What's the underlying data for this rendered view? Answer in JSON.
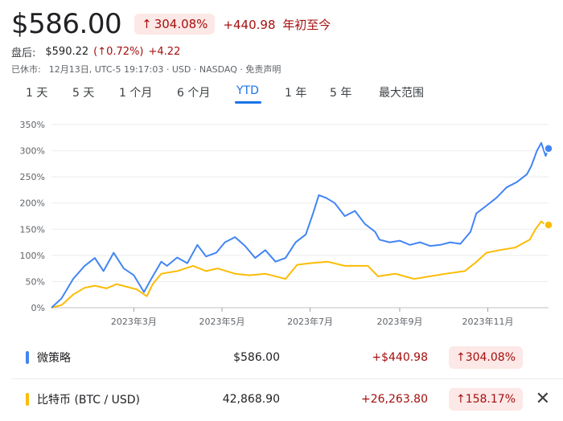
{
  "header": {
    "price": "$586.00",
    "pct_arrow": "↑",
    "pct_change": "304.08%",
    "abs_change": "+440.98",
    "period_label": "年初至今"
  },
  "after_hours": {
    "label": "盘后:",
    "price": "$590.22",
    "pct": "(↑0.72%)",
    "abs": "+4.22"
  },
  "market_status": {
    "label": "已休市:",
    "detail": "12月13日, UTC-5 19:17:03 · USD · NASDAQ · 免责声明"
  },
  "tabs": [
    "1 天",
    "5 天",
    "1 个月",
    "6 个月",
    "YTD",
    "1 年",
    "5 年",
    "最大范围"
  ],
  "active_tab": "YTD",
  "colors": {
    "series_blue": "#4285f4",
    "series_yellow": "#fbbc04",
    "negative_red": "#a50e0e",
    "badge_bg": "#fce8e6",
    "active_tab": "#1a73e8"
  },
  "comparison": [
    {
      "name": "微策略",
      "price": "$586.00",
      "abs": "+$440.98",
      "pct_arrow": "↑",
      "pct": "304.08%",
      "color": "#4285f4",
      "removable": false
    },
    {
      "name": "比特币 (BTC / USD)",
      "price": "42,868.90",
      "abs": "+26,263.80",
      "pct_arrow": "↑",
      "pct": "158.17%",
      "color": "#fbbc04",
      "removable": true,
      "remove_icon": "close-icon"
    }
  ],
  "chart_data": {
    "type": "line",
    "y_ticks": [
      "350%",
      "300%",
      "250%",
      "200%",
      "150%",
      "100%",
      "50%",
      "0%"
    ],
    "ylim": [
      0,
      350
    ],
    "x_ticks": [
      "2023年3月",
      "2023年5月",
      "2023年7月",
      "2023年9月",
      "2023年11月"
    ],
    "x_tick_dates": [
      "2023-03-01",
      "2023-05-01",
      "2023-07-01",
      "2023-09-01",
      "2023-11-01"
    ],
    "xlim": [
      "2023-01-03",
      "2023-12-13"
    ],
    "grid": true,
    "series": [
      {
        "name": "微策略",
        "color": "#4285f4",
        "points": [
          [
            "2023-01-03",
            0
          ],
          [
            "2023-01-10",
            18
          ],
          [
            "2023-01-18",
            55
          ],
          [
            "2023-01-26",
            80
          ],
          [
            "2023-02-02",
            95
          ],
          [
            "2023-02-08",
            70
          ],
          [
            "2023-02-15",
            105
          ],
          [
            "2023-02-22",
            75
          ],
          [
            "2023-03-01",
            62
          ],
          [
            "2023-03-08",
            30
          ],
          [
            "2023-03-13",
            55
          ],
          [
            "2023-03-20",
            88
          ],
          [
            "2023-03-24",
            80
          ],
          [
            "2023-03-31",
            96
          ],
          [
            "2023-04-07",
            85
          ],
          [
            "2023-04-14",
            120
          ],
          [
            "2023-04-20",
            98
          ],
          [
            "2023-04-27",
            105
          ],
          [
            "2023-05-03",
            125
          ],
          [
            "2023-05-10",
            135
          ],
          [
            "2023-05-17",
            118
          ],
          [
            "2023-05-24",
            95
          ],
          [
            "2023-05-31",
            110
          ],
          [
            "2023-06-07",
            88
          ],
          [
            "2023-06-14",
            95
          ],
          [
            "2023-06-21",
            125
          ],
          [
            "2023-06-28",
            140
          ],
          [
            "2023-07-03",
            180
          ],
          [
            "2023-07-07",
            215
          ],
          [
            "2023-07-12",
            210
          ],
          [
            "2023-07-18",
            200
          ],
          [
            "2023-07-25",
            175
          ],
          [
            "2023-08-01",
            185
          ],
          [
            "2023-08-08",
            160
          ],
          [
            "2023-08-15",
            145
          ],
          [
            "2023-08-18",
            130
          ],
          [
            "2023-08-25",
            125
          ],
          [
            "2023-09-01",
            128
          ],
          [
            "2023-09-08",
            120
          ],
          [
            "2023-09-15",
            125
          ],
          [
            "2023-09-22",
            118
          ],
          [
            "2023-09-29",
            120
          ],
          [
            "2023-10-06",
            125
          ],
          [
            "2023-10-13",
            122
          ],
          [
            "2023-10-20",
            145
          ],
          [
            "2023-10-24",
            180
          ],
          [
            "2023-10-31",
            195
          ],
          [
            "2023-11-07",
            210
          ],
          [
            "2023-11-14",
            230
          ],
          [
            "2023-11-21",
            240
          ],
          [
            "2023-11-28",
            255
          ],
          [
            "2023-12-01",
            270
          ],
          [
            "2023-12-05",
            300
          ],
          [
            "2023-12-08",
            315
          ],
          [
            "2023-12-11",
            290
          ],
          [
            "2023-12-13",
            304.08
          ]
        ]
      },
      {
        "name": "比特币 (BTC / USD)",
        "color": "#fbbc04",
        "points": [
          [
            "2023-01-03",
            0
          ],
          [
            "2023-01-10",
            5
          ],
          [
            "2023-01-18",
            25
          ],
          [
            "2023-01-26",
            38
          ],
          [
            "2023-02-02",
            42
          ],
          [
            "2023-02-10",
            37
          ],
          [
            "2023-02-17",
            45
          ],
          [
            "2023-02-24",
            40
          ],
          [
            "2023-03-03",
            35
          ],
          [
            "2023-03-10",
            22
          ],
          [
            "2023-03-14",
            45
          ],
          [
            "2023-03-20",
            65
          ],
          [
            "2023-03-31",
            70
          ],
          [
            "2023-04-11",
            80
          ],
          [
            "2023-04-20",
            70
          ],
          [
            "2023-04-28",
            75
          ],
          [
            "2023-05-10",
            65
          ],
          [
            "2023-05-20",
            62
          ],
          [
            "2023-05-31",
            65
          ],
          [
            "2023-06-14",
            55
          ],
          [
            "2023-06-22",
            82
          ],
          [
            "2023-07-01",
            85
          ],
          [
            "2023-07-13",
            88
          ],
          [
            "2023-07-25",
            80
          ],
          [
            "2023-08-10",
            80
          ],
          [
            "2023-08-17",
            60
          ],
          [
            "2023-08-29",
            65
          ],
          [
            "2023-09-11",
            55
          ],
          [
            "2023-09-22",
            60
          ],
          [
            "2023-10-03",
            65
          ],
          [
            "2023-10-16",
            70
          ],
          [
            "2023-10-23",
            85
          ],
          [
            "2023-10-31",
            105
          ],
          [
            "2023-11-09",
            110
          ],
          [
            "2023-11-20",
            115
          ],
          [
            "2023-11-30",
            130
          ],
          [
            "2023-12-04",
            150
          ],
          [
            "2023-12-08",
            165
          ],
          [
            "2023-12-11",
            158
          ],
          [
            "2023-12-13",
            158.17
          ]
        ]
      }
    ]
  }
}
